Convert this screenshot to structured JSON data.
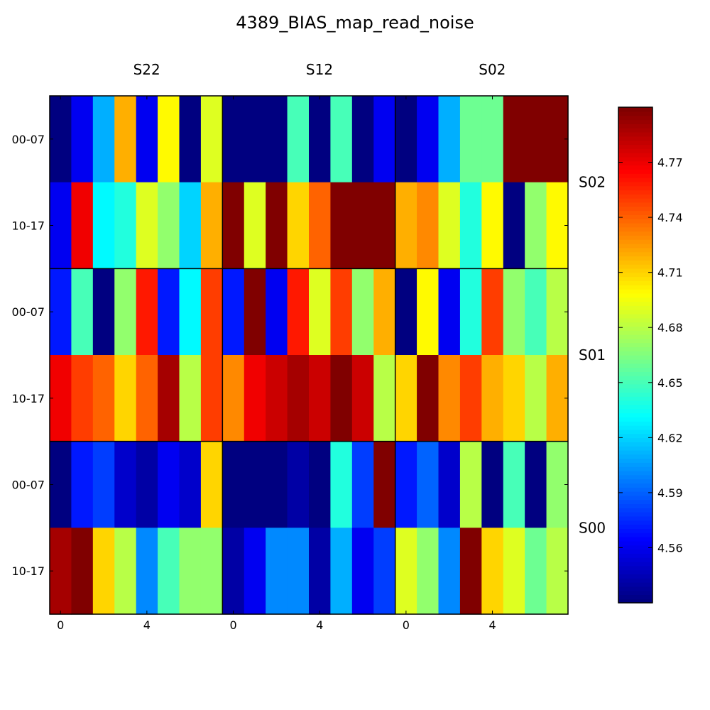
{
  "chart_data": {
    "type": "heatmap",
    "title": "4389_BIAS_map_read_noise",
    "column_groups": [
      "S22",
      "S12",
      "S02"
    ],
    "row_groups": [
      "S02",
      "S01",
      "S00"
    ],
    "row_labels": [
      "00-07",
      "10-17",
      "00-07",
      "10-17",
      "00-07",
      "10-17"
    ],
    "x_tick_labels": [
      "0",
      "4"
    ],
    "colorbar": {
      "colormap": "jet",
      "vmin": 4.53,
      "vmax": 4.8,
      "ticks": [
        "4.56",
        "4.59",
        "4.62",
        "4.65",
        "4.68",
        "4.71",
        "4.74",
        "4.77"
      ]
    },
    "values": [
      [
        4.53,
        4.56,
        4.61,
        4.72,
        4.56,
        4.7,
        4.53,
        4.69,
        4.53,
        4.53,
        4.53,
        4.65,
        4.53,
        4.65,
        4.53,
        4.56,
        4.53,
        4.56,
        4.61,
        4.66,
        4.66,
        4.8,
        4.8,
        4.8
      ],
      [
        4.56,
        4.77,
        4.63,
        4.64,
        4.69,
        4.67,
        4.62,
        4.72,
        4.8,
        4.69,
        4.8,
        4.71,
        4.74,
        4.8,
        4.8,
        4.8,
        4.72,
        4.73,
        4.69,
        4.64,
        4.7,
        4.53,
        4.67,
        4.7
      ],
      [
        4.57,
        4.65,
        4.53,
        4.67,
        4.76,
        4.57,
        4.63,
        4.75,
        4.57,
        4.8,
        4.56,
        4.76,
        4.69,
        4.75,
        4.67,
        4.72,
        4.53,
        4.7,
        4.56,
        4.64,
        4.75,
        4.67,
        4.65,
        4.68
      ],
      [
        4.77,
        4.75,
        4.74,
        4.71,
        4.74,
        4.79,
        4.68,
        4.75,
        4.73,
        4.77,
        4.78,
        4.79,
        4.78,
        4.8,
        4.78,
        4.68,
        4.71,
        4.8,
        4.73,
        4.75,
        4.72,
        4.71,
        4.68,
        4.72
      ],
      [
        4.53,
        4.57,
        4.58,
        4.55,
        4.54,
        4.56,
        4.55,
        4.71,
        4.53,
        4.53,
        4.53,
        4.54,
        4.53,
        4.64,
        4.58,
        4.8,
        4.57,
        4.59,
        4.55,
        4.68,
        4.53,
        4.65,
        4.53,
        4.67
      ],
      [
        4.79,
        4.8,
        4.71,
        4.68,
        4.6,
        4.65,
        4.67,
        4.67,
        4.54,
        4.56,
        4.6,
        4.6,
        4.54,
        4.61,
        4.56,
        4.58,
        4.69,
        4.67,
        4.6,
        4.8,
        4.71,
        4.69,
        4.66,
        4.68
      ]
    ]
  }
}
